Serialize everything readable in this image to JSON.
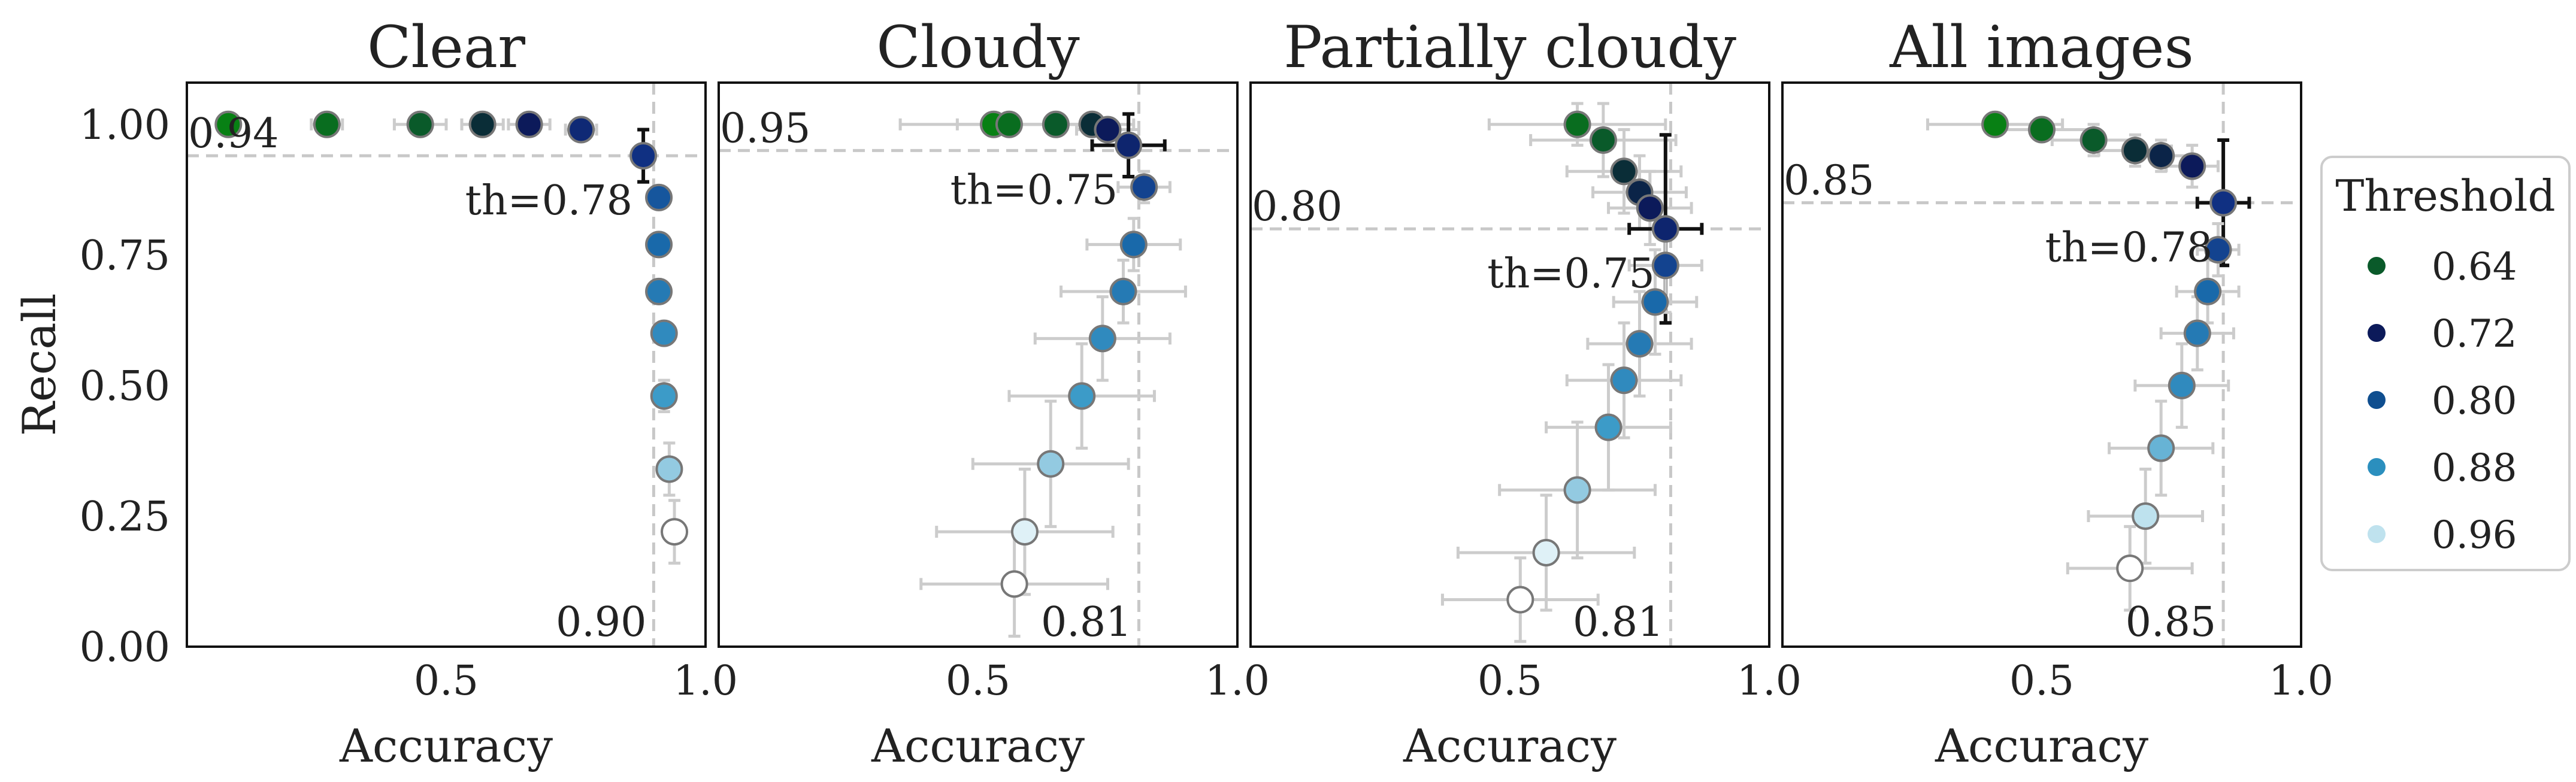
{
  "chart_data": {
    "type": "scatter",
    "ylabel": "Recall",
    "xlabel": "Accuracy",
    "xlim": [
      0,
      1
    ],
    "ylim": [
      0,
      1.08
    ],
    "xticks": [
      0.5,
      1.0
    ],
    "xtick_labels": [
      "0.5",
      "1.0"
    ],
    "yticks": [
      0,
      0.25,
      0.5,
      0.75,
      1.0
    ],
    "ytick_labels": [
      "0.00",
      "0.25",
      "0.50",
      "0.75",
      "1.00"
    ],
    "grid": false,
    "color_by": "threshold",
    "legend": {
      "title": "Threshold",
      "position": "right",
      "entries": [
        {
          "label": "0.64",
          "value": 0.64,
          "color": "#0a5a2a"
        },
        {
          "label": "0.72",
          "value": 0.72,
          "color": "#0c1a5a"
        },
        {
          "label": "0.80",
          "value": 0.8,
          "color": "#0f4e8f"
        },
        {
          "label": "0.88",
          "value": 0.88,
          "color": "#2b8fbe"
        },
        {
          "label": "0.96",
          "value": 0.96,
          "color": "#bfe2ee"
        }
      ]
    },
    "panels": [
      {
        "title": "Clear",
        "acc_line": 0.9,
        "acc_label": "0.90",
        "rec_line": 0.94,
        "rec_label": "0.94",
        "th_label": "th=0.78",
        "points": [
          {
            "t": 0.56,
            "x": 0.08,
            "y": 1.0,
            "xe": 0.02,
            "ye": 0.0
          },
          {
            "t": 0.6,
            "x": 0.27,
            "y": 1.0,
            "xe": 0.03,
            "ye": 0.0
          },
          {
            "t": 0.64,
            "x": 0.45,
            "y": 1.0,
            "xe": 0.05,
            "ye": 0.0
          },
          {
            "t": 0.68,
            "x": 0.57,
            "y": 1.0,
            "xe": 0.04,
            "ye": 0.0
          },
          {
            "t": 0.72,
            "x": 0.66,
            "y": 1.0,
            "xe": 0.04,
            "ye": 0.0
          },
          {
            "t": 0.76,
            "x": 0.76,
            "y": 0.99,
            "xe": 0.03,
            "ye": 0.0
          },
          {
            "t": 0.78,
            "x": 0.88,
            "y": 0.94,
            "xe": 0.02,
            "ye": 0.05,
            "hl": true
          },
          {
            "t": 0.82,
            "x": 0.91,
            "y": 0.86,
            "xe": 0.02,
            "ye": 0.02
          },
          {
            "t": 0.84,
            "x": 0.91,
            "y": 0.77,
            "xe": 0.02,
            "ye": 0.02
          },
          {
            "t": 0.86,
            "x": 0.91,
            "y": 0.68,
            "xe": 0.02,
            "ye": 0.02
          },
          {
            "t": 0.88,
            "x": 0.92,
            "y": 0.6,
            "xe": 0.02,
            "ye": 0.02
          },
          {
            "t": 0.9,
            "x": 0.92,
            "y": 0.48,
            "xe": 0.02,
            "ye": 0.03
          },
          {
            "t": 0.94,
            "x": 0.93,
            "y": 0.34,
            "xe": 0.02,
            "ye": 0.05
          },
          {
            "t": 1.0,
            "x": 0.94,
            "y": 0.22,
            "xe": 0.02,
            "ye": 0.06
          }
        ]
      },
      {
        "title": "Cloudy",
        "acc_line": 0.81,
        "acc_label": "0.81",
        "rec_line": 0.95,
        "rec_label": "0.95",
        "th_label": "th=0.75",
        "points": [
          {
            "t": 0.56,
            "x": 0.53,
            "y": 1.0,
            "xe": 0.18,
            "ye": 0.0
          },
          {
            "t": 0.6,
            "x": 0.56,
            "y": 1.0,
            "xe": 0.1,
            "ye": 0.0
          },
          {
            "t": 0.64,
            "x": 0.65,
            "y": 1.0,
            "xe": 0.08,
            "ye": 0.0
          },
          {
            "t": 0.68,
            "x": 0.72,
            "y": 1.0,
            "xe": 0.08,
            "ye": 0.0
          },
          {
            "t": 0.72,
            "x": 0.75,
            "y": 0.99,
            "xe": 0.06,
            "ye": 0.0
          },
          {
            "t": 0.75,
            "x": 0.79,
            "y": 0.96,
            "xe": 0.07,
            "ye": 0.06,
            "hl": true
          },
          {
            "t": 0.8,
            "x": 0.82,
            "y": 0.88,
            "xe": 0.05,
            "ye": 0.03
          },
          {
            "t": 0.84,
            "x": 0.8,
            "y": 0.77,
            "xe": 0.09,
            "ye": 0.05
          },
          {
            "t": 0.86,
            "x": 0.78,
            "y": 0.68,
            "xe": 0.12,
            "ye": 0.06
          },
          {
            "t": 0.88,
            "x": 0.74,
            "y": 0.59,
            "xe": 0.13,
            "ye": 0.08
          },
          {
            "t": 0.9,
            "x": 0.7,
            "y": 0.48,
            "xe": 0.14,
            "ye": 0.1
          },
          {
            "t": 0.94,
            "x": 0.64,
            "y": 0.35,
            "xe": 0.15,
            "ye": 0.12
          },
          {
            "t": 0.98,
            "x": 0.59,
            "y": 0.22,
            "xe": 0.17,
            "ye": 0.12
          },
          {
            "t": 1.0,
            "x": 0.57,
            "y": 0.12,
            "xe": 0.18,
            "ye": 0.1
          }
        ]
      },
      {
        "title": "Partially cloudy",
        "acc_line": 0.81,
        "acc_label": "0.81",
        "rec_line": 0.8,
        "rec_label": "0.80",
        "th_label": "th=0.75",
        "points": [
          {
            "t": 0.6,
            "x": 0.63,
            "y": 1.0,
            "xe": 0.17,
            "ye": 0.04
          },
          {
            "t": 0.64,
            "x": 0.68,
            "y": 0.97,
            "xe": 0.14,
            "ye": 0.07
          },
          {
            "t": 0.68,
            "x": 0.72,
            "y": 0.91,
            "xe": 0.11,
            "ye": 0.08
          },
          {
            "t": 0.7,
            "x": 0.75,
            "y": 0.87,
            "xe": 0.09,
            "ye": 0.07
          },
          {
            "t": 0.72,
            "x": 0.77,
            "y": 0.84,
            "xe": 0.08,
            "ye": 0.07
          },
          {
            "t": 0.75,
            "x": 0.8,
            "y": 0.8,
            "xe": 0.07,
            "ye": 0.18,
            "hl": true
          },
          {
            "t": 0.8,
            "x": 0.8,
            "y": 0.73,
            "xe": 0.07,
            "ye": 0.09
          },
          {
            "t": 0.84,
            "x": 0.78,
            "y": 0.66,
            "xe": 0.08,
            "ye": 0.1
          },
          {
            "t": 0.86,
            "x": 0.75,
            "y": 0.58,
            "xe": 0.1,
            "ye": 0.1
          },
          {
            "t": 0.88,
            "x": 0.72,
            "y": 0.51,
            "xe": 0.11,
            "ye": 0.11
          },
          {
            "t": 0.9,
            "x": 0.69,
            "y": 0.42,
            "xe": 0.12,
            "ye": 0.12
          },
          {
            "t": 0.94,
            "x": 0.63,
            "y": 0.3,
            "xe": 0.15,
            "ye": 0.13
          },
          {
            "t": 0.98,
            "x": 0.57,
            "y": 0.18,
            "xe": 0.17,
            "ye": 0.11
          },
          {
            "t": 1.0,
            "x": 0.52,
            "y": 0.09,
            "xe": 0.15,
            "ye": 0.08
          }
        ]
      },
      {
        "title": "All images",
        "acc_line": 0.85,
        "acc_label": "0.85",
        "rec_line": 0.85,
        "rec_label": "0.85",
        "th_label": "th=0.78",
        "points": [
          {
            "t": 0.56,
            "x": 0.41,
            "y": 1.0,
            "xe": 0.13,
            "ye": 0.0
          },
          {
            "t": 0.6,
            "x": 0.5,
            "y": 0.99,
            "xe": 0.1,
            "ye": 0.02
          },
          {
            "t": 0.64,
            "x": 0.6,
            "y": 0.97,
            "xe": 0.08,
            "ye": 0.03
          },
          {
            "t": 0.68,
            "x": 0.68,
            "y": 0.95,
            "xe": 0.07,
            "ye": 0.03
          },
          {
            "t": 0.7,
            "x": 0.73,
            "y": 0.94,
            "xe": 0.06,
            "ye": 0.03
          },
          {
            "t": 0.72,
            "x": 0.79,
            "y": 0.92,
            "xe": 0.05,
            "ye": 0.04
          },
          {
            "t": 0.78,
            "x": 0.85,
            "y": 0.85,
            "xe": 0.05,
            "ye": 0.12,
            "hl": true
          },
          {
            "t": 0.8,
            "x": 0.84,
            "y": 0.76,
            "xe": 0.04,
            "ye": 0.05
          },
          {
            "t": 0.84,
            "x": 0.82,
            "y": 0.68,
            "xe": 0.06,
            "ye": 0.06
          },
          {
            "t": 0.86,
            "x": 0.8,
            "y": 0.6,
            "xe": 0.07,
            "ye": 0.07
          },
          {
            "t": 0.88,
            "x": 0.77,
            "y": 0.5,
            "xe": 0.09,
            "ye": 0.08
          },
          {
            "t": 0.92,
            "x": 0.73,
            "y": 0.38,
            "xe": 0.1,
            "ye": 0.09
          },
          {
            "t": 0.96,
            "x": 0.7,
            "y": 0.25,
            "xe": 0.11,
            "ye": 0.09
          },
          {
            "t": 1.0,
            "x": 0.67,
            "y": 0.15,
            "xe": 0.12,
            "ye": 0.08
          }
        ]
      }
    ]
  }
}
